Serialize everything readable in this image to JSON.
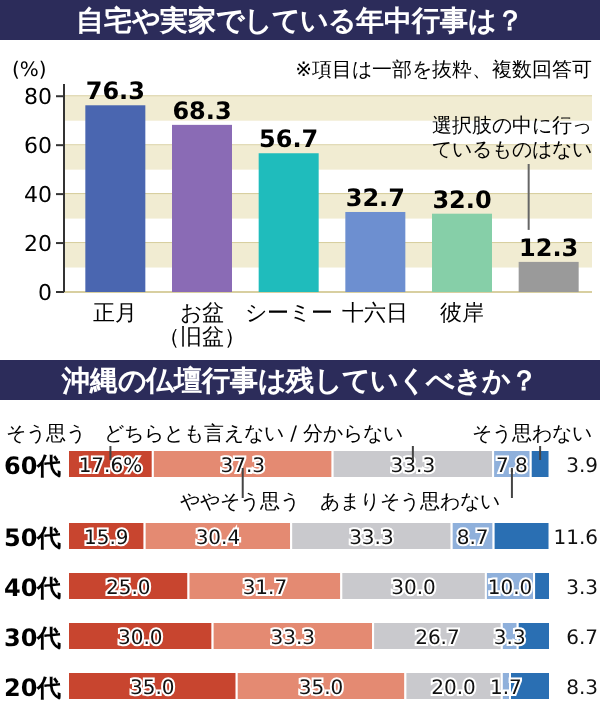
{
  "chart_data": [
    {
      "type": "bar",
      "title": "自宅や実家でしている年中行事は？",
      "ylabel": "(%)",
      "annotations": [
        "※項目は一部を抜粋、複数回答可"
      ],
      "categories": [
        "正月",
        "お盆（旧盆）",
        "シーミー",
        "十六日",
        "彼岸",
        "選択肢の中に行っているものはない"
      ],
      "values": [
        76.3,
        68.3,
        56.7,
        32.7,
        32.0,
        12.3
      ],
      "value_labels": [
        "76.3",
        "68.3",
        "56.7",
        "32.7",
        "32.0",
        "12.3"
      ],
      "colors": [
        "#4a66b0",
        "#8a6bb5",
        "#1fbcbc",
        "#6d8fd0",
        "#86cfa8",
        "#9a9a9a"
      ],
      "ylim": [
        0,
        85
      ],
      "yticks": [
        0,
        20,
        40,
        60,
        80
      ],
      "grid": true,
      "bands": [
        {
          "axis": "y",
          "from": 70,
          "to": 80,
          "color": "#f1ecd2"
        },
        {
          "axis": "y",
          "from": 50,
          "to": 60,
          "color": "#f1ecd2"
        },
        {
          "axis": "y",
          "from": 30,
          "to": 40,
          "color": "#f1ecd2"
        },
        {
          "axis": "y",
          "from": 10,
          "to": 20,
          "color": "#f1ecd2"
        }
      ]
    },
    {
      "type": "bar",
      "title": "沖縄の仏壇行事は残していくべきか？",
      "orientation": "horizontal",
      "stacked": true,
      "legend": "top",
      "categories": [
        "60代",
        "50代",
        "40代",
        "30代",
        "20代"
      ],
      "xlim": [
        0,
        100
      ],
      "tick_labels": "y",
      "series": [
        {
          "name": "そう思う",
          "color": "#c8452f",
          "values": [
            17.6,
            15.9,
            25.0,
            30.0,
            35.0
          ],
          "value_labels": [
            "17.6%",
            "15.9",
            "25.0",
            "30.0",
            "35.0"
          ]
        },
        {
          "name": "ややそう思う",
          "color": "#e48a72",
          "values": [
            37.3,
            30.4,
            31.7,
            33.3,
            35.0
          ],
          "value_labels": [
            "37.3",
            "30.4",
            "31.7",
            "33.3",
            "35.0"
          ]
        },
        {
          "name": "どちらとも言えない / 分からない",
          "color": "#c9c9cd",
          "values": [
            33.3,
            33.3,
            30.0,
            26.7,
            20.0
          ],
          "value_labels": [
            "33.3",
            "33.3",
            "30.0",
            "26.7",
            "20.0"
          ]
        },
        {
          "name": "あまりそう思わない",
          "color": "#8fb0db",
          "values": [
            7.8,
            8.7,
            10.0,
            3.3,
            1.7
          ],
          "value_labels": [
            "7.8",
            "8.7",
            "10.0",
            "3.3",
            "1.7"
          ]
        },
        {
          "name": "そう思わない",
          "color": "#2a6fb3",
          "values": [
            3.9,
            11.6,
            3.3,
            6.7,
            8.3
          ],
          "value_labels": [
            "3.9",
            "11.6",
            "3.3",
            "6.7",
            "8.3"
          ]
        }
      ]
    }
  ]
}
